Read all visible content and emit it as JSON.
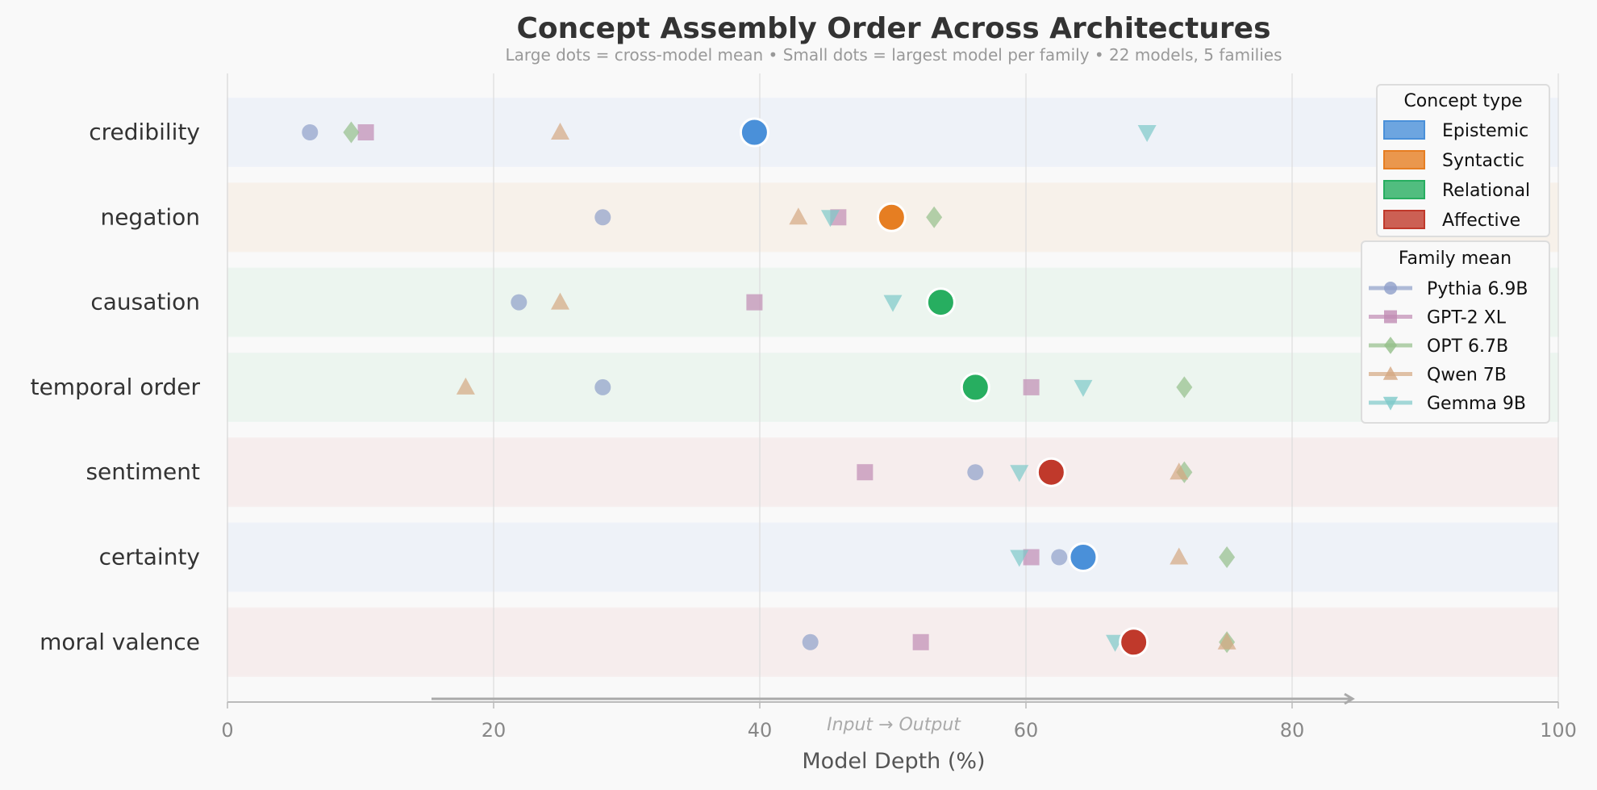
{
  "chart_data": {
    "type": "scatter",
    "title": "Concept Assembly Order Across Architectures",
    "subtitle": "Large dots = cross-model mean  •  Small dots = largest model per family  •  22 models, 5 families",
    "xlabel": "Model Depth (%)",
    "direction_label": "Input → Output",
    "xlim": [
      0,
      100
    ],
    "xticks": [
      "0",
      "20",
      "40",
      "60",
      "80",
      "100"
    ],
    "grid": "vertical",
    "legend_placement": "right",
    "concept_types": [
      {
        "name": "Epistemic",
        "color": "#4a90d9",
        "band": "#eef2f8"
      },
      {
        "name": "Syntactic",
        "color": "#e67e22",
        "band": "#f7f1ea"
      },
      {
        "name": "Relational",
        "color": "#27ae60",
        "band": "#ecf5ef"
      },
      {
        "name": "Affective",
        "color": "#c0392b",
        "band": "#f6eded"
      }
    ],
    "concept_legend_title": "Concept type",
    "family_legend_title": "Family mean",
    "families": [
      {
        "name": "Pythia 6.9B",
        "color": "#8e9fc9",
        "marker": "circle"
      },
      {
        "name": "GPT-2 XL",
        "color": "#c08cb4",
        "marker": "square"
      },
      {
        "name": "OPT 6.7B",
        "color": "#94bf8a",
        "marker": "diamond"
      },
      {
        "name": "Qwen 7B",
        "color": "#d4a882",
        "marker": "triangle-up"
      },
      {
        "name": "Gemma 9B",
        "color": "#7ec9c9",
        "marker": "triangle-down"
      }
    ],
    "concepts": [
      {
        "label": "credibility",
        "type": 0,
        "mean": 39.6,
        "family_values": [
          6.2,
          10.4,
          9.3,
          25.0,
          69.1
        ]
      },
      {
        "label": "negation",
        "type": 1,
        "mean": 49.9,
        "family_values": [
          28.2,
          45.9,
          53.1,
          42.9,
          45.3
        ]
      },
      {
        "label": "causation",
        "type": 2,
        "mean": 53.6,
        "family_values": [
          21.9,
          39.6,
          null,
          25.0,
          50.0
        ]
      },
      {
        "label": "temporal order",
        "type": 2,
        "mean": 56.2,
        "family_values": [
          28.2,
          60.4,
          71.9,
          17.9,
          64.3
        ]
      },
      {
        "label": "sentiment",
        "type": 3,
        "mean": 61.9,
        "family_values": [
          56.2,
          47.9,
          71.9,
          71.5,
          59.5
        ]
      },
      {
        "label": "certainty",
        "type": 0,
        "mean": 64.3,
        "family_values": [
          62.5,
          60.4,
          75.1,
          71.5,
          59.5
        ]
      },
      {
        "label": "moral valence",
        "type": 3,
        "mean": 68.1,
        "family_values": [
          43.8,
          52.1,
          75.1,
          75.1,
          66.7
        ]
      }
    ]
  }
}
